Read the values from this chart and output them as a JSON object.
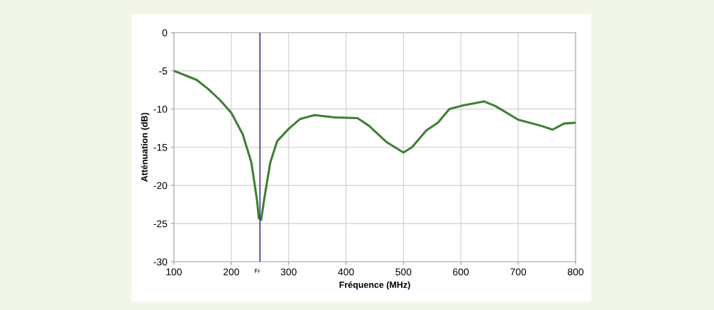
{
  "chart_data": {
    "type": "line",
    "xlabel": "Fréquence (MHz)",
    "ylabel": "Atténuation (dB)",
    "xlim": [
      100,
      800
    ],
    "xticks": [
      100,
      200,
      300,
      400,
      500,
      600,
      700,
      800
    ],
    "ylim": [
      -30,
      0
    ],
    "yticks": [
      -30,
      -25,
      -20,
      -15,
      -10,
      -5,
      0
    ],
    "grid": true,
    "line_style": "solid",
    "marker": "none",
    "series": [
      {
        "color": "#3f7f35",
        "x": [
          100,
          120,
          140,
          160,
          180,
          200,
          220,
          235,
          245,
          248,
          252,
          258,
          268,
          280,
          300,
          320,
          345,
          380,
          420,
          440,
          470,
          500,
          515,
          540,
          560,
          580,
          600,
          640,
          660,
          700,
          740,
          760,
          780,
          800
        ],
        "values": [
          -5,
          -5.6,
          -6.2,
          -7.4,
          -8.8,
          -10.5,
          -13.3,
          -17,
          -22,
          -24.3,
          -24.5,
          -21.5,
          -17,
          -14.2,
          -12.6,
          -11.3,
          -10.8,
          -11.1,
          -11.2,
          -12.2,
          -14.3,
          -15.7,
          -15,
          -12.8,
          -11.8,
          -10,
          -9.6,
          -9,
          -9.6,
          -11.4,
          -12.2,
          -12.7,
          -11.9,
          -11.8
        ]
      }
    ],
    "ref_lines": [
      {
        "axis": "x",
        "value": 250,
        "label": "Fr",
        "color": "#3a3a8c",
        "line_style": "solid"
      }
    ]
  }
}
